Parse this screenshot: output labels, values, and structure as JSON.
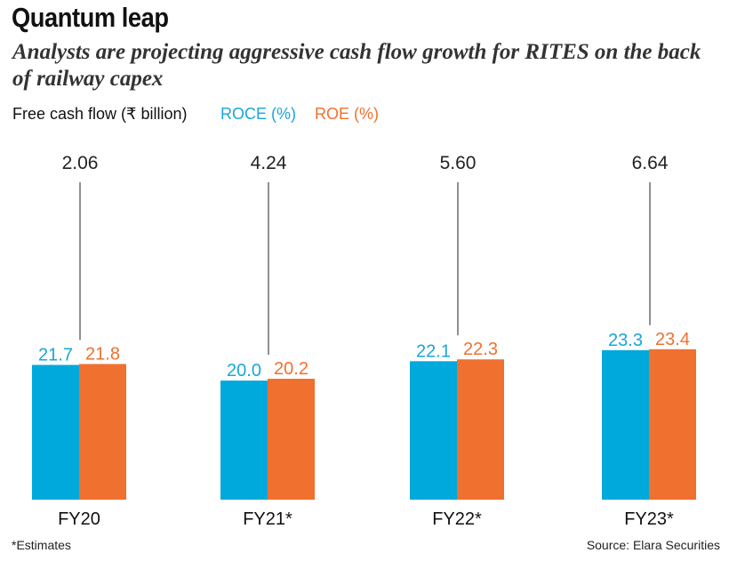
{
  "title": "Quantum leap",
  "subtitle": "Analysts are projecting aggressive cash flow growth for RITES on the back of railway capex",
  "legend": {
    "fcf": "Free cash flow (₹ billion)",
    "roce": "ROCE (%)",
    "roe": "ROE (%)"
  },
  "footnote": "*Estimates",
  "source": "Source: Elara Securities",
  "colors": {
    "roce": "#00a9dc",
    "roe": "#f07030",
    "roce_label": "#1aa6d8",
    "roe_label": "#f07030",
    "text": "#222222"
  },
  "chart_data": {
    "type": "bar",
    "categories": [
      "FY20",
      "FY21*",
      "FY22*",
      "FY23*"
    ],
    "series": [
      {
        "name": "ROCE (%)",
        "values": [
          21.7,
          20.0,
          22.1,
          23.3
        ]
      },
      {
        "name": "ROE (%)",
        "values": [
          21.8,
          20.2,
          22.3,
          23.4
        ]
      }
    ],
    "annotations": {
      "name": "Free cash flow (₹ billion)",
      "values": [
        "2.06",
        "4.24",
        "5.60",
        "6.64"
      ]
    }
  }
}
